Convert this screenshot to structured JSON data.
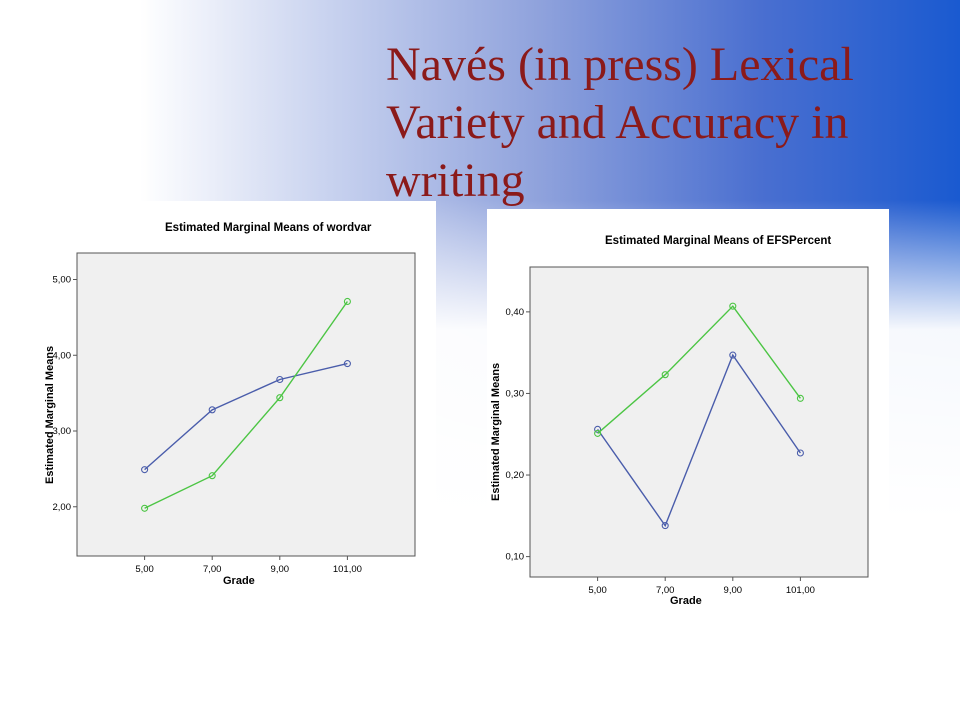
{
  "slide": {
    "title": "Navés (in press) Lexical\nVariety and Accuracy  in\nwriting"
  },
  "colors": {
    "series_blue": "#4a5dab",
    "series_green": "#4cc544",
    "plot_bg": "#f0f0f0",
    "title_color": "#8b1a1a"
  },
  "chart_data": [
    {
      "type": "line",
      "title": "Estimated Marginal Means of wordvar",
      "xlabel": "Grade",
      "ylabel": "Estimated Marginal Means",
      "categories": [
        "5,00",
        "7,00",
        "9,00",
        "101,00"
      ],
      "yticks": [
        2.0,
        3.0,
        4.0,
        5.0
      ],
      "ytick_labels": [
        "2,00",
        "3,00",
        "4,00",
        "5,00"
      ],
      "ylim": [
        1.35,
        5.35
      ],
      "grid": false,
      "series": [
        {
          "color": "#4a5dab",
          "values": [
            2.49,
            3.28,
            3.68,
            3.89
          ]
        },
        {
          "color": "#4cc544",
          "values": [
            1.98,
            2.41,
            3.44,
            4.71
          ]
        }
      ]
    },
    {
      "type": "line",
      "title": "Estimated Marginal Means of EFSPercent",
      "xlabel": "Grade",
      "ylabel": "Estimated Marginal Means",
      "categories": [
        "5,00",
        "7,00",
        "9,00",
        "101,00"
      ],
      "yticks": [
        0.1,
        0.2,
        0.3,
        0.4
      ],
      "ytick_labels": [
        "0,10",
        "0,20",
        "0,30",
        "0,40"
      ],
      "ylim": [
        0.075,
        0.455
      ],
      "grid": false,
      "series": [
        {
          "color": "#4a5dab",
          "values": [
            0.256,
            0.138,
            0.347,
            0.227
          ]
        },
        {
          "color": "#4cc544",
          "values": [
            0.251,
            0.323,
            0.407,
            0.294
          ]
        }
      ]
    }
  ]
}
